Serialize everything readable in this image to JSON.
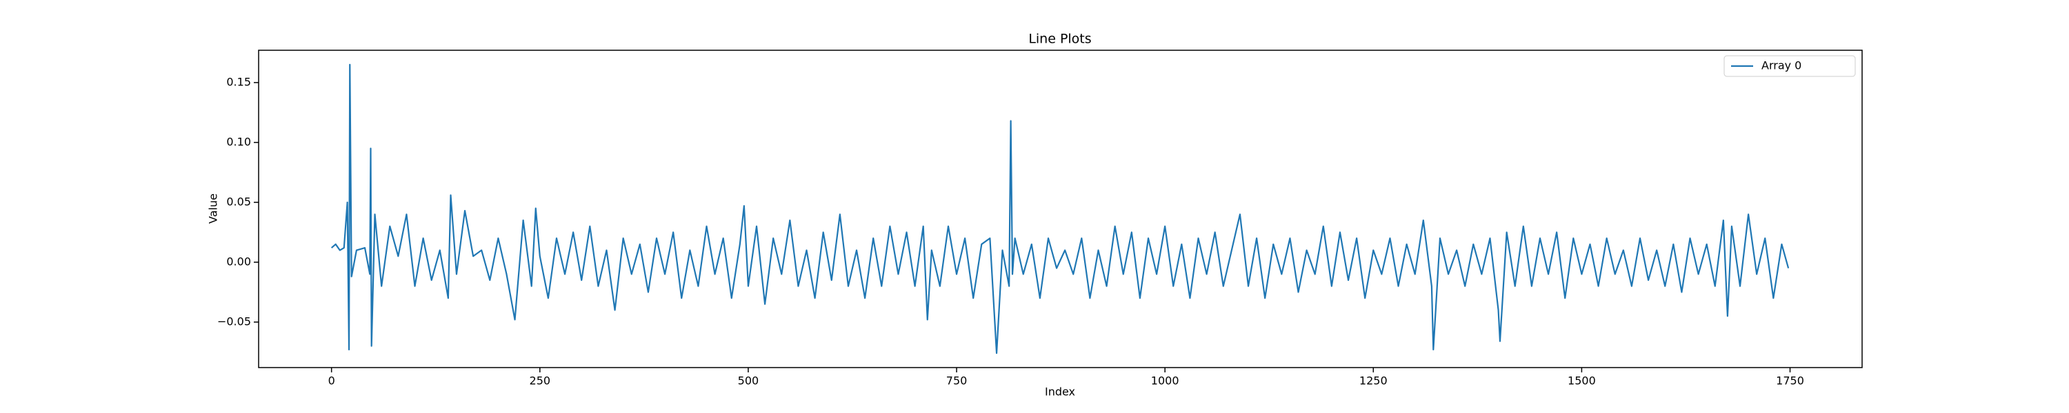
{
  "chart_data": {
    "type": "line",
    "title": "Line Plots",
    "x_label": "Index",
    "y_label": "Value",
    "x": [
      0,
      5,
      10,
      15,
      19,
      21,
      22,
      24,
      30,
      40,
      46,
      47,
      48,
      52,
      60,
      70,
      80,
      90,
      100,
      110,
      120,
      130,
      140,
      143,
      150,
      160,
      170,
      180,
      190,
      200,
      210,
      220,
      230,
      240,
      245,
      250,
      260,
      270,
      280,
      290,
      300,
      310,
      320,
      330,
      340,
      350,
      360,
      370,
      380,
      390,
      400,
      410,
      420,
      430,
      440,
      450,
      460,
      470,
      480,
      490,
      495,
      500,
      510,
      520,
      530,
      540,
      550,
      560,
      570,
      580,
      590,
      600,
      610,
      620,
      630,
      640,
      650,
      660,
      670,
      680,
      690,
      700,
      710,
      715,
      720,
      730,
      740,
      750,
      760,
      770,
      780,
      790,
      798,
      805,
      813,
      815,
      817,
      820,
      830,
      840,
      850,
      860,
      870,
      880,
      890,
      900,
      910,
      920,
      930,
      940,
      950,
      960,
      970,
      980,
      990,
      1000,
      1010,
      1020,
      1030,
      1040,
      1050,
      1060,
      1070,
      1080,
      1090,
      1100,
      1110,
      1120,
      1130,
      1140,
      1150,
      1160,
      1170,
      1180,
      1190,
      1200,
      1210,
      1220,
      1230,
      1240,
      1250,
      1260,
      1270,
      1280,
      1290,
      1300,
      1310,
      1320,
      1322,
      1330,
      1340,
      1350,
      1360,
      1370,
      1380,
      1390,
      1400,
      1402,
      1410,
      1420,
      1430,
      1440,
      1450,
      1460,
      1470,
      1480,
      1490,
      1500,
      1510,
      1520,
      1530,
      1540,
      1550,
      1560,
      1570,
      1580,
      1590,
      1600,
      1610,
      1620,
      1630,
      1640,
      1650,
      1660,
      1670,
      1675,
      1680,
      1690,
      1700,
      1710,
      1720,
      1730,
      1740,
      1748
    ],
    "series": [
      {
        "name": "Array 0",
        "color": "#1f77b4",
        "values": [
          0.012,
          0.015,
          0.01,
          0.012,
          0.05,
          -0.073,
          0.165,
          -0.012,
          0.01,
          0.012,
          -0.01,
          0.095,
          -0.07,
          0.04,
          -0.02,
          0.03,
          0.005,
          0.04,
          -0.02,
          0.02,
          -0.015,
          0.01,
          -0.03,
          0.056,
          -0.01,
          0.043,
          0.005,
          0.01,
          -0.015,
          0.02,
          -0.01,
          -0.048,
          0.035,
          -0.02,
          0.045,
          0.005,
          -0.03,
          0.02,
          -0.01,
          0.025,
          -0.015,
          0.03,
          -0.02,
          0.01,
          -0.04,
          0.02,
          -0.01,
          0.015,
          -0.025,
          0.02,
          -0.01,
          0.025,
          -0.03,
          0.01,
          -0.02,
          0.03,
          -0.01,
          0.02,
          -0.03,
          0.015,
          0.047,
          -0.02,
          0.03,
          -0.035,
          0.02,
          -0.01,
          0.035,
          -0.02,
          0.01,
          -0.03,
          0.025,
          -0.015,
          0.04,
          -0.02,
          0.01,
          -0.03,
          0.02,
          -0.02,
          0.03,
          -0.01,
          0.025,
          -0.02,
          0.03,
          -0.048,
          0.01,
          -0.02,
          0.03,
          -0.01,
          0.02,
          -0.03,
          0.015,
          0.02,
          -0.076,
          0.01,
          -0.02,
          0.118,
          -0.01,
          0.02,
          -0.01,
          0.015,
          -0.03,
          0.02,
          -0.005,
          0.01,
          -0.01,
          0.02,
          -0.03,
          0.01,
          -0.02,
          0.03,
          -0.01,
          0.025,
          -0.03,
          0.02,
          -0.01,
          0.03,
          -0.02,
          0.015,
          -0.03,
          0.02,
          -0.01,
          0.025,
          -0.02,
          0.01,
          0.04,
          -0.02,
          0.02,
          -0.03,
          0.015,
          -0.01,
          0.02,
          -0.025,
          0.01,
          -0.01,
          0.03,
          -0.02,
          0.025,
          -0.015,
          0.02,
          -0.03,
          0.01,
          -0.01,
          0.02,
          -0.02,
          0.015,
          -0.01,
          0.035,
          -0.02,
          -0.073,
          0.02,
          -0.01,
          0.01,
          -0.02,
          0.015,
          -0.01,
          0.02,
          -0.04,
          -0.066,
          0.025,
          -0.02,
          0.03,
          -0.02,
          0.02,
          -0.01,
          0.025,
          -0.03,
          0.02,
          -0.01,
          0.015,
          -0.02,
          0.02,
          -0.01,
          0.01,
          -0.02,
          0.02,
          -0.015,
          0.01,
          -0.02,
          0.015,
          -0.025,
          0.02,
          -0.01,
          0.015,
          -0.02,
          0.035,
          -0.045,
          0.03,
          -0.02,
          0.04,
          -0.01,
          0.02,
          -0.03,
          0.015,
          -0.005
        ]
      }
    ],
    "xlim": [
      -87.45,
      1836.45
    ],
    "ylim": [
      -0.088,
      0.177
    ],
    "xticks": [
      0,
      250,
      500,
      750,
      1000,
      1250,
      1500,
      1750
    ],
    "yticks": [
      {
        "value": -0.05,
        "label": "−0.05"
      },
      {
        "value": 0,
        "label": "0.00"
      },
      0.05,
      {
        "value": 0.1,
        "label": "0.10"
      },
      0.15
    ],
    "legend": "upper right"
  }
}
